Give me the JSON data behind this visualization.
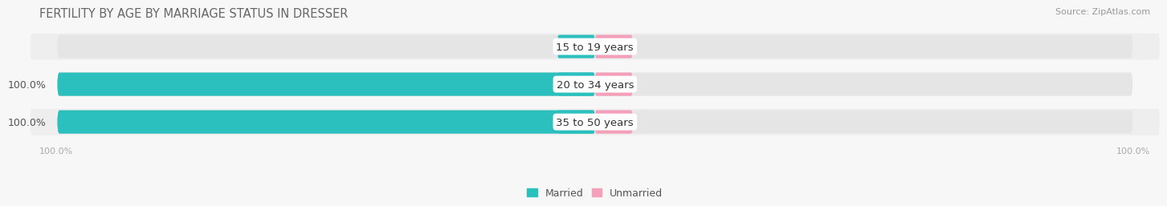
{
  "title": "FERTILITY BY AGE BY MARRIAGE STATUS IN DRESSER",
  "source": "Source: ZipAtlas.com",
  "categories": [
    "15 to 19 years",
    "20 to 34 years",
    "35 to 50 years"
  ],
  "married_values": [
    0.0,
    100.0,
    100.0
  ],
  "unmarried_values": [
    0.0,
    0.0,
    0.0
  ],
  "married_color": "#2bbfbd",
  "unmarried_color": "#f4a0ba",
  "bar_bg_color": "#e5e5e5",
  "bar_bg_color2": "#efefef",
  "title_color": "#666666",
  "source_color": "#999999",
  "label_color": "#333333",
  "axis_label_color": "#aaaaaa",
  "title_fontsize": 10.5,
  "label_fontsize": 9,
  "cat_fontsize": 9.5,
  "legend_fontsize": 9,
  "axis_label_left": "100.0%",
  "axis_label_right": "100.0%",
  "background_color": "#f7f7f7",
  "row_bg_even": "#eeeeee",
  "row_bg_odd": "#f7f7f7"
}
